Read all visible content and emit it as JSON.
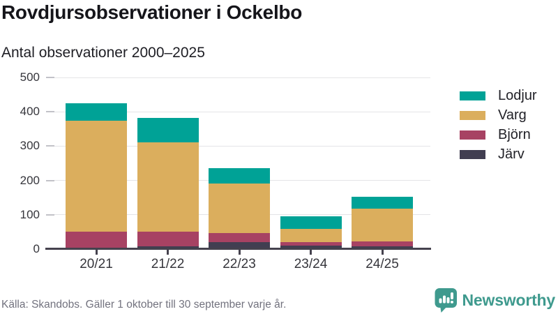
{
  "header": {
    "title": "Rovdjursobservationer i Ockelbo",
    "subtitle": "Antal observationer 2000–2025"
  },
  "chart_data": {
    "type": "bar",
    "stacked": true,
    "title": "Rovdjursobservationer i Ockelbo",
    "subtitle": "Antal observationer 2000–2025",
    "categories": [
      "20/21",
      "21/22",
      "22/23",
      "23/24",
      "24/25"
    ],
    "series": [
      {
        "name": "Järv",
        "color": "#413e51",
        "values": [
          0,
          8,
          20,
          10,
          8
        ]
      },
      {
        "name": "Björn",
        "color": "#a74263",
        "values": [
          50,
          42,
          27,
          10,
          14
        ]
      },
      {
        "name": "Varg",
        "color": "#dbae5d",
        "values": [
          325,
          262,
          145,
          38,
          95
        ]
      },
      {
        "name": "Lodjur",
        "color": "#00a296",
        "values": [
          50,
          71,
          43,
          38,
          36
        ]
      }
    ],
    "stack_order_bottom_to_top": [
      "Järv",
      "Björn",
      "Varg",
      "Lodjur"
    ],
    "legend_order": [
      "Lodjur",
      "Varg",
      "Björn",
      "Järv"
    ],
    "legend_position": "right",
    "xlabel": "",
    "ylabel": "",
    "ylim": [
      0,
      500
    ],
    "yticks": [
      0,
      100,
      200,
      300,
      400,
      500
    ],
    "grid": "horizontal"
  },
  "footer": {
    "source": "Källa: Skandobs. Gäller 1 oktober till 30 september varje år.",
    "brand": "Newsworthy"
  },
  "colors": {
    "axis": "#45424e",
    "grid": "#e4e4e7",
    "tick_label": "#36363c",
    "muted_text": "#72727e",
    "brand": "#3f9a8e"
  }
}
